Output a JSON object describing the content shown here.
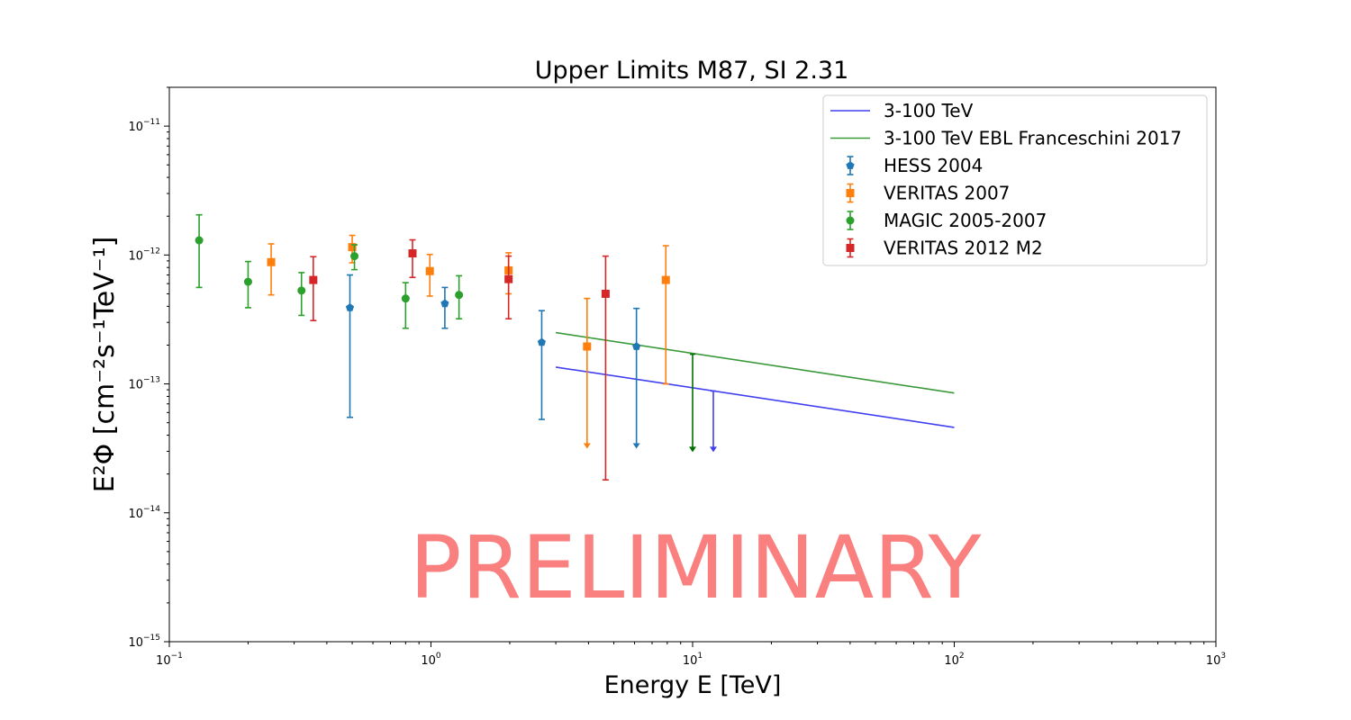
{
  "chart_data": {
    "type": "scatter",
    "title": "Upper Limits M87, SI 2.31",
    "xlabel": "Energy E [TeV]",
    "ylabel": "E²Φ [cm⁻²s⁻¹TeV⁻¹]",
    "xscale": "log",
    "yscale": "log",
    "xlim": [
      0.1,
      1000
    ],
    "ylim": [
      1e-15,
      2e-11
    ],
    "grid": false,
    "legend_position": "top-right",
    "x_ticks": [
      {
        "value": 0.1,
        "base": "10",
        "exp": "−1"
      },
      {
        "value": 1,
        "base": "10",
        "exp": "0"
      },
      {
        "value": 10,
        "base": "10",
        "exp": "1"
      },
      {
        "value": 100,
        "base": "10",
        "exp": "2"
      },
      {
        "value": 1000,
        "base": "10",
        "exp": "3"
      }
    ],
    "y_ticks": [
      {
        "value": 1e-15,
        "base": "10",
        "exp": "−15"
      },
      {
        "value": 1e-14,
        "base": "10",
        "exp": "−14"
      },
      {
        "value": 1e-13,
        "base": "10",
        "exp": "−13"
      },
      {
        "value": 1e-12,
        "base": "10",
        "exp": "−12"
      },
      {
        "value": 1e-11,
        "base": "10",
        "exp": "−11"
      }
    ],
    "annotations": [
      {
        "text": "PRELIMINARY",
        "color": "#fa7f7f"
      }
    ],
    "lines": [
      {
        "name": "3-100 TeV",
        "color": "#4040f0",
        "x": [
          3,
          100
        ],
        "y": [
          1.35e-13,
          4.6e-14
        ]
      },
      {
        "name": "3-100 TeV EBL Franceschini 2017",
        "color": "#3a9a3a",
        "x": [
          3,
          100
        ],
        "y": [
          2.5e-13,
          8.5e-14
        ]
      }
    ],
    "upper_limits": [
      {
        "x": 10,
        "y_top": 1.7e-13,
        "y_bottom": 3.1e-14,
        "color": "#007000"
      },
      {
        "x": 12,
        "y_top": 8.8e-14,
        "y_bottom": 3.1e-14,
        "color": "#4040f0"
      }
    ],
    "series": [
      {
        "name": "HESS 2004",
        "color": "#1f77b4",
        "marker": "pentagon",
        "points": [
          {
            "x": 0.49,
            "y": 3.9e-13,
            "lo": 5.5e-14,
            "hi": 7e-13
          },
          {
            "x": 1.13,
            "y": 4.2e-13,
            "lo": 2.7e-13,
            "hi": 5.6e-13
          },
          {
            "x": 2.65,
            "y": 2.1e-13,
            "lo": 5.3e-14,
            "hi": 3.7e-13
          },
          {
            "x": 6.1,
            "y": 1.95e-13,
            "lo": 3.3e-14,
            "hi": 3.85e-13,
            "upper_limit": true
          }
        ]
      },
      {
        "name": "VERITAS 2007",
        "color": "#ff7f0e",
        "marker": "square",
        "points": [
          {
            "x": 0.245,
            "y": 8.8e-13,
            "lo": 4.9e-13,
            "hi": 1.22e-12
          },
          {
            "x": 0.5,
            "y": 1.15e-12,
            "lo": 8.7e-13,
            "hi": 1.42e-12
          },
          {
            "x": 0.99,
            "y": 7.5e-13,
            "lo": 4.8e-13,
            "hi": 1.01e-12
          },
          {
            "x": 1.98,
            "y": 7.6e-13,
            "lo": 5e-13,
            "hi": 1.04e-12
          },
          {
            "x": 3.95,
            "y": 1.95e-13,
            "lo": 3.3e-14,
            "hi": 4.6e-13,
            "upper_limit": true
          },
          {
            "x": 7.9,
            "y": 6.4e-13,
            "lo": 1e-13,
            "hi": 1.18e-12
          }
        ]
      },
      {
        "name": "MAGIC 2005-2007",
        "color": "#2ca02c",
        "marker": "circle",
        "points": [
          {
            "x": 0.13,
            "y": 1.3e-12,
            "lo": 5.6e-13,
            "hi": 2.05e-12
          },
          {
            "x": 0.2,
            "y": 6.2e-13,
            "lo": 3.9e-13,
            "hi": 8.9e-13
          },
          {
            "x": 0.32,
            "y": 5.3e-13,
            "lo": 3.4e-13,
            "hi": 7.3e-13
          },
          {
            "x": 0.51,
            "y": 9.8e-13,
            "lo": 7.7e-13,
            "hi": 1.2e-12
          },
          {
            "x": 0.8,
            "y": 4.6e-13,
            "lo": 2.7e-13,
            "hi": 6.1e-13
          },
          {
            "x": 1.28,
            "y": 4.9e-13,
            "lo": 3.2e-13,
            "hi": 6.9e-13
          }
        ]
      },
      {
        "name": "VERITAS 2012 M2",
        "color": "#d62728",
        "marker": "square",
        "points": [
          {
            "x": 0.355,
            "y": 6.4e-13,
            "lo": 3.1e-13,
            "hi": 9.7e-13
          },
          {
            "x": 0.85,
            "y": 1.03e-12,
            "lo": 6.7e-13,
            "hi": 1.31e-12
          },
          {
            "x": 1.98,
            "y": 6.5e-13,
            "lo": 3.2e-13,
            "hi": 9.8e-13
          },
          {
            "x": 4.65,
            "y": 5e-13,
            "lo": 1.8e-14,
            "hi": 9.8e-13
          }
        ]
      }
    ]
  }
}
